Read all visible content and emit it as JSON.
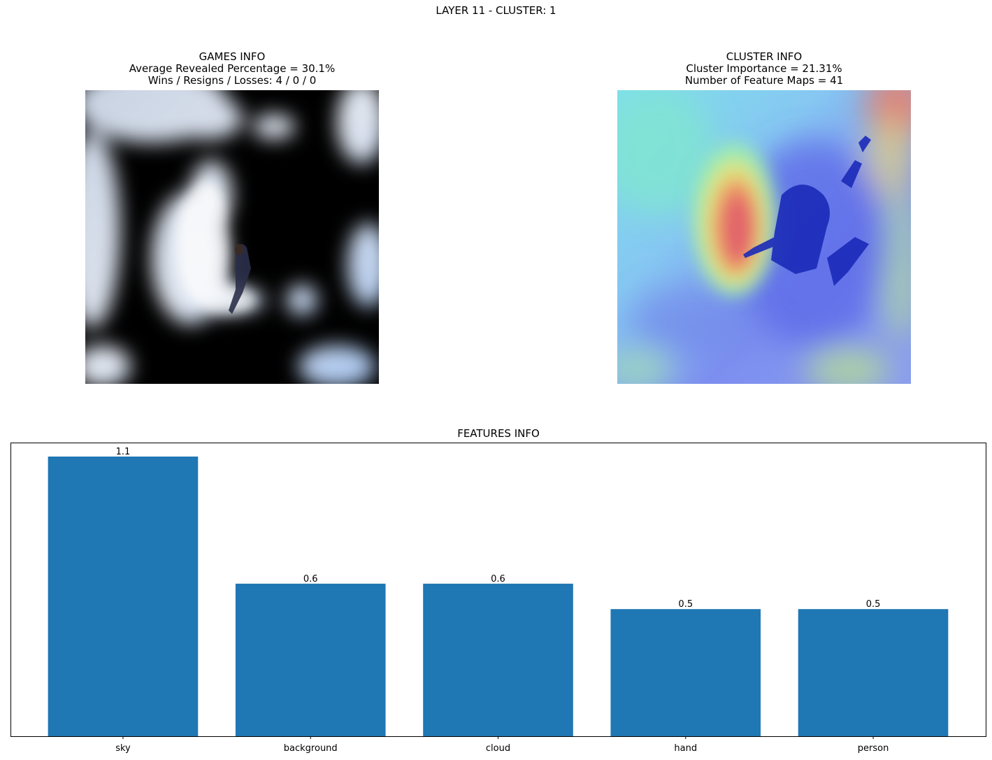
{
  "suptitle": "LAYER 11 - CLUSTER: 1",
  "games_info": {
    "title": "GAMES INFO",
    "line1": "Average Revealed Percentage = 30.1%",
    "line2": "Wins / Resigns / Losses: 4 / 0 / 0"
  },
  "cluster_info": {
    "title": "CLUSTER INFO",
    "line1": "Cluster Importance = 21.31%",
    "line2": "Number of Feature Maps = 41"
  },
  "chart_data": {
    "type": "bar",
    "title": "FEATURES INFO",
    "categories": [
      "sky",
      "background",
      "cloud",
      "hand",
      "person"
    ],
    "values": [
      1.1,
      0.6,
      0.6,
      0.5,
      0.5
    ],
    "value_labels": [
      "1.1",
      "0.6",
      "0.6",
      "0.5",
      "0.5"
    ],
    "xlabel": "",
    "ylabel": "",
    "ylim": [
      0,
      1.155
    ],
    "grid": false,
    "bar_color": "#1f77b4"
  }
}
